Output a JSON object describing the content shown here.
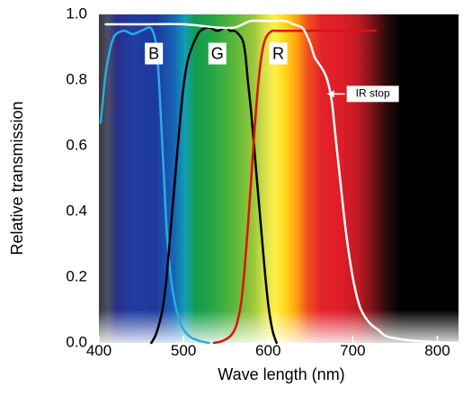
{
  "chart_data": {
    "type": "line",
    "title": "",
    "xlabel": "Wave length (nm)",
    "ylabel": "Relative transmission",
    "xlim": [
      400,
      830
    ],
    "ylim": [
      0,
      1.0
    ],
    "x_ticks": [
      "400",
      "500",
      "600",
      "700",
      "800"
    ],
    "y_ticks": [
      "0.0",
      "0.2",
      "0.4",
      "0.6",
      "0.8",
      "1.0"
    ],
    "grid": false,
    "background": "visible light spectrum gradient, black beyond 745 nm",
    "series": [
      {
        "name": "B",
        "color": "#29abe2",
        "x": [
          402,
          404,
          408,
          412,
          416,
          420,
          430,
          440,
          450,
          460,
          465,
          468,
          471,
          474,
          477,
          480,
          485,
          490,
          495,
          500,
          505,
          510,
          515,
          520,
          530
        ],
        "y": [
          0.67,
          0.72,
          0.82,
          0.88,
          0.92,
          0.94,
          0.95,
          0.94,
          0.95,
          0.96,
          0.94,
          0.9,
          0.8,
          0.65,
          0.5,
          0.35,
          0.2,
          0.12,
          0.07,
          0.04,
          0.025,
          0.015,
          0.01,
          0.005,
          0.0
        ]
      },
      {
        "name": "G",
        "color": "#000000",
        "x": [
          462,
          468,
          475,
          480,
          485,
          490,
          495,
          500,
          505,
          510,
          515,
          520,
          530,
          540,
          550,
          555,
          560,
          565,
          570,
          573,
          576,
          580,
          585,
          590,
          595,
          600,
          605,
          610
        ],
        "y": [
          0.0,
          0.03,
          0.1,
          0.2,
          0.35,
          0.5,
          0.65,
          0.78,
          0.86,
          0.9,
          0.93,
          0.95,
          0.96,
          0.95,
          0.96,
          0.95,
          0.95,
          0.94,
          0.92,
          0.88,
          0.8,
          0.7,
          0.55,
          0.4,
          0.25,
          0.12,
          0.04,
          0.0
        ]
      },
      {
        "name": "R",
        "color": "#e01010",
        "x": [
          536,
          545,
          555,
          562,
          568,
          572,
          576,
          580,
          584,
          588,
          592,
          596,
          600,
          605,
          610,
          620,
          640,
          660,
          680,
          700,
          715,
          727
        ],
        "y": [
          0.0,
          0.005,
          0.02,
          0.05,
          0.12,
          0.22,
          0.35,
          0.5,
          0.65,
          0.78,
          0.87,
          0.92,
          0.94,
          0.95,
          0.95,
          0.95,
          0.95,
          0.95,
          0.95,
          0.95,
          0.95,
          0.95
        ]
      },
      {
        "name": "IR stop",
        "color": "#ffffff",
        "x": [
          408,
          450,
          500,
          540,
          560,
          570,
          580,
          600,
          620,
          630,
          640,
          645,
          650,
          655,
          660,
          665,
          670,
          675,
          680,
          685,
          690,
          695,
          700,
          705,
          710,
          720,
          730,
          740,
          760,
          780,
          800,
          830
        ],
        "y": [
          0.97,
          0.97,
          0.97,
          0.96,
          0.96,
          0.97,
          0.98,
          0.98,
          0.98,
          0.97,
          0.96,
          0.94,
          0.91,
          0.87,
          0.85,
          0.83,
          0.8,
          0.74,
          0.62,
          0.5,
          0.38,
          0.28,
          0.2,
          0.14,
          0.1,
          0.06,
          0.04,
          0.02,
          0.01,
          0.005,
          0.002,
          0.0
        ]
      }
    ],
    "labels": {
      "B": "B",
      "G": "G",
      "R": "R",
      "IR stop": "IR stop"
    }
  }
}
